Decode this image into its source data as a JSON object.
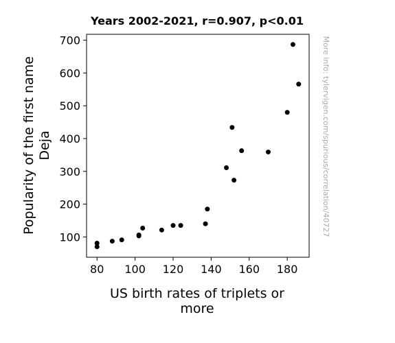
{
  "chart_data": {
    "type": "scatter",
    "title": "Years 2002-2021, r=0.907, p<0.01",
    "xlabel_lines": [
      "US birth rates of triplets or",
      "more"
    ],
    "ylabel_lines": [
      "Popularity of the first name",
      "Deja"
    ],
    "watermark": "More info: tylervigen.com/spurious/correlation/40727",
    "xlim": [
      74.5,
      191.5
    ],
    "ylim": [
      38,
      718
    ],
    "x_ticks": [
      80,
      100,
      120,
      140,
      160,
      180
    ],
    "y_ticks": [
      100,
      200,
      300,
      400,
      500,
      600,
      700
    ],
    "grid": false,
    "point_color": "#000000",
    "points": [
      {
        "x": 80,
        "y": 70
      },
      {
        "x": 80,
        "y": 81
      },
      {
        "x": 88,
        "y": 87
      },
      {
        "x": 93,
        "y": 91
      },
      {
        "x": 102,
        "y": 103
      },
      {
        "x": 102,
        "y": 106
      },
      {
        "x": 104,
        "y": 127
      },
      {
        "x": 114,
        "y": 121
      },
      {
        "x": 120,
        "y": 135
      },
      {
        "x": 124,
        "y": 135
      },
      {
        "x": 137,
        "y": 140
      },
      {
        "x": 138,
        "y": 185
      },
      {
        "x": 148,
        "y": 311
      },
      {
        "x": 151,
        "y": 434
      },
      {
        "x": 152,
        "y": 273
      },
      {
        "x": 156,
        "y": 363
      },
      {
        "x": 170,
        "y": 359
      },
      {
        "x": 180,
        "y": 480
      },
      {
        "x": 183,
        "y": 687
      },
      {
        "x": 186,
        "y": 566
      }
    ]
  }
}
